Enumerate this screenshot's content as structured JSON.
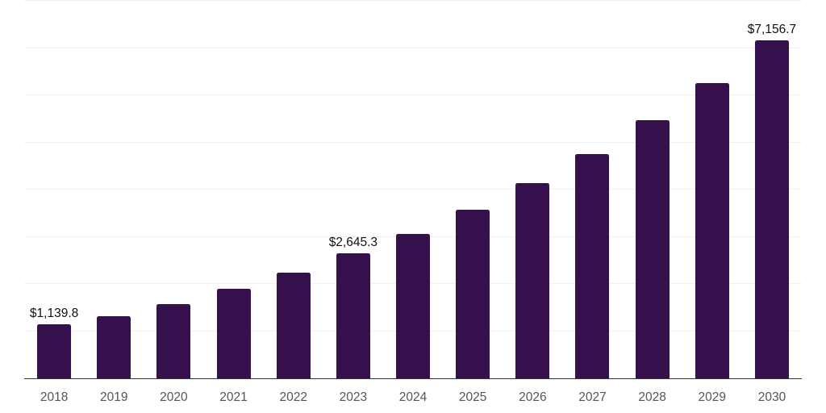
{
  "colors": {
    "background": "#ffffff",
    "bar": "#36104d",
    "axis_line": "#333333",
    "gridline": "#f0f0f0",
    "year_label": "#555555",
    "value_label": "#111111"
  },
  "chart_data": {
    "type": "bar",
    "title": "",
    "xlabel": "",
    "ylabel": "",
    "categories": [
      "2018",
      "2019",
      "2020",
      "2021",
      "2022",
      "2023",
      "2024",
      "2025",
      "2026",
      "2027",
      "2028",
      "2029",
      "2030"
    ],
    "values": [
      1139.8,
      1316,
      1567,
      1903,
      2239,
      2645.3,
      3065,
      3573,
      4137,
      4752,
      5465,
      6262,
      7156.7
    ],
    "value_labels": [
      "$1,139.8",
      "",
      "",
      "",
      "",
      "$2,645.3",
      "",
      "",
      "",
      "",
      "",
      "",
      "$7,156.7"
    ],
    "ylim": [
      0,
      8000
    ],
    "gridline_step": 1000,
    "grid": "horizontal",
    "legend": "none",
    "y_axis_tick_labels": "none"
  }
}
